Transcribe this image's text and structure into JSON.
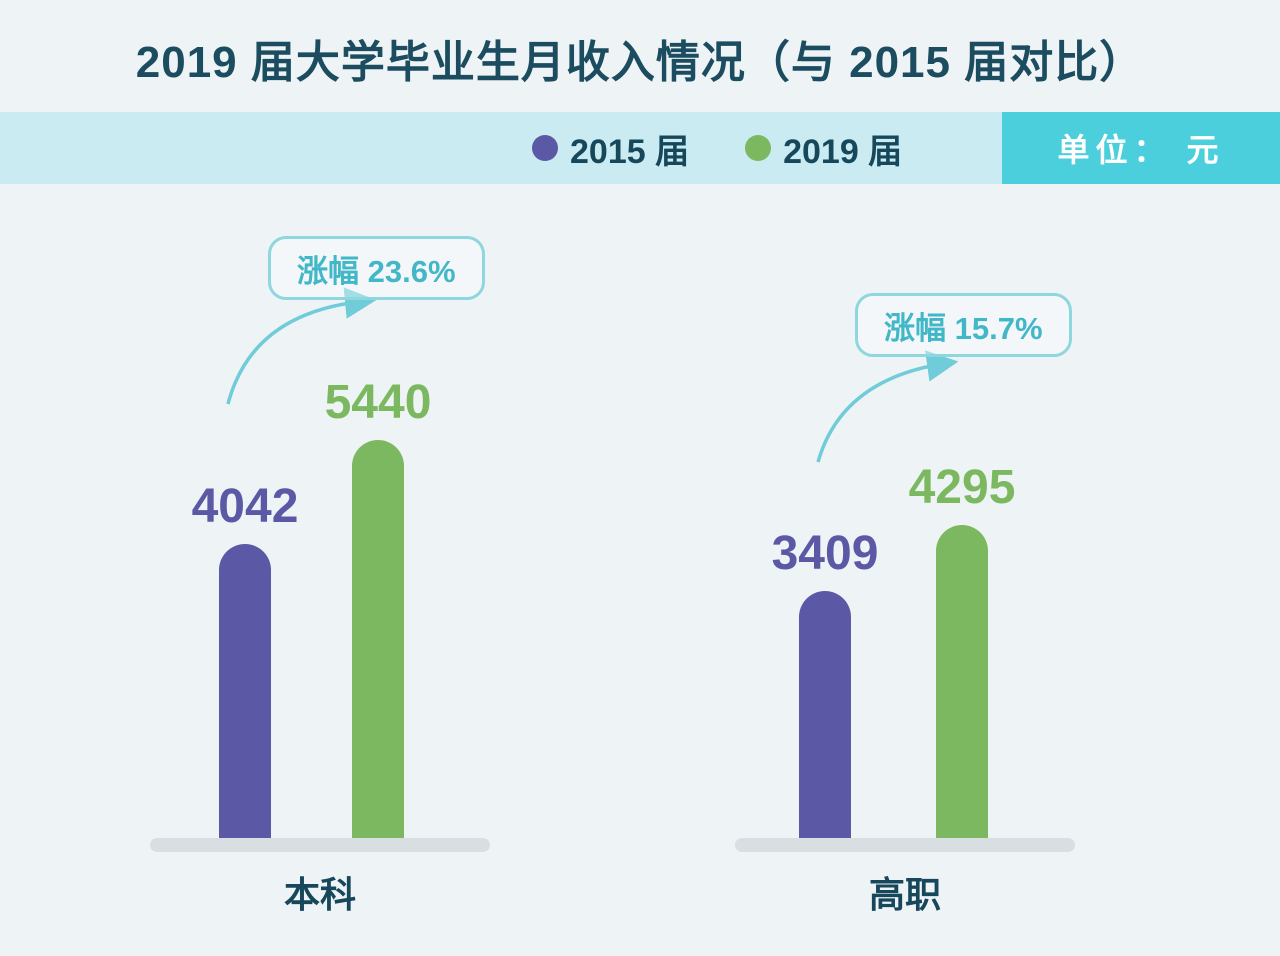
{
  "title": "2019 届大学毕业生月收入情况（与 2015 届对比）",
  "legend": {
    "items": [
      {
        "label": "2015 届",
        "color": "#5b58a6"
      },
      {
        "label": "2019 届",
        "color": "#7cb85f"
      }
    ],
    "unit_label": "单位： 元"
  },
  "chart_data": {
    "type": "bar",
    "title": "2019 届大学毕业生月收入情况（与 2015 届对比）",
    "unit": "元",
    "categories": [
      "本科",
      "高职"
    ],
    "series": [
      {
        "name": "2015 届",
        "color": "#5b58a6",
        "values": [
          4042,
          3409
        ]
      },
      {
        "name": "2019 届",
        "color": "#7cb85f",
        "values": [
          5440,
          4295
        ]
      }
    ],
    "annotations": [
      {
        "category": "本科",
        "label": "涨幅 23.6%",
        "value": "23.6%"
      },
      {
        "category": "高职",
        "label": "涨幅 15.7%",
        "value": "15.7%"
      }
    ],
    "layout": {
      "legend_position": "top",
      "grid": false,
      "value_labels": "above-bars"
    },
    "colors": {
      "background": "#eef3f6",
      "legend_band": "#c9ebf1",
      "unit_box": "#4ccfdd",
      "title_text": "#1c4c5f",
      "annotation_text": "#41b7c8",
      "annotation_border": "#8ed7de",
      "arrow": "#6fccd8",
      "baseline": "#d9dee3"
    }
  }
}
